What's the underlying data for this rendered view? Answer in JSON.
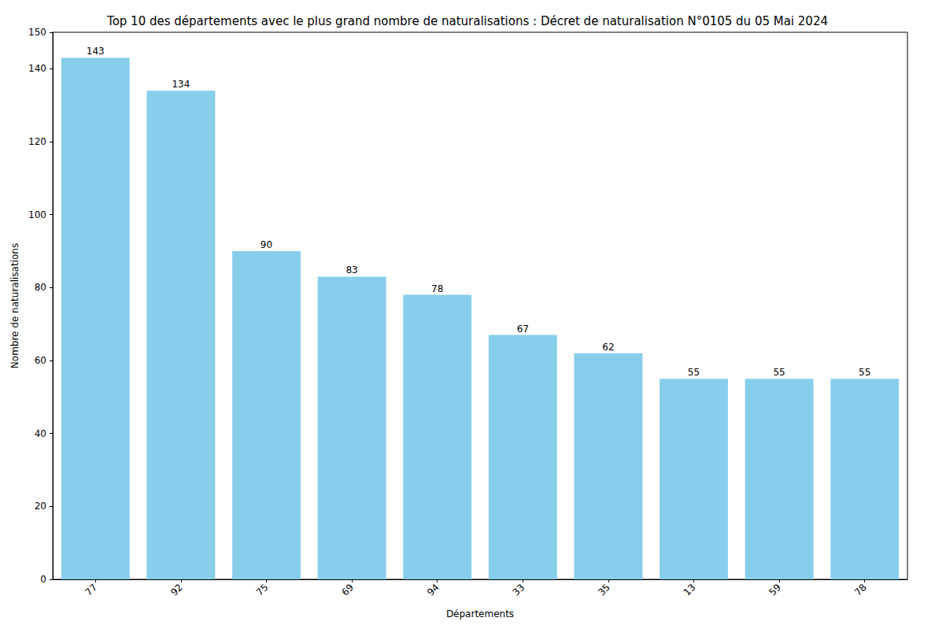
{
  "chart_data": {
    "type": "bar",
    "title": "Top 10 des départements avec le plus grand nombre de naturalisations : Décret de naturalisation N°0105 du 05 Mai 2024",
    "x_label": "Départements",
    "y_label": "Nombre de naturalisations",
    "categories": [
      "77",
      "92",
      "75",
      "69",
      "94",
      "33",
      "35",
      "13",
      "59",
      "78"
    ],
    "values": [
      143,
      134,
      90,
      83,
      78,
      67,
      62,
      55,
      55,
      55
    ],
    "color": "#87ceeb",
    "ylim": [
      0,
      150
    ],
    "yticks": [
      0,
      20,
      40,
      60,
      80,
      100,
      120,
      140
    ],
    "grid": false,
    "data_labels": true
  }
}
